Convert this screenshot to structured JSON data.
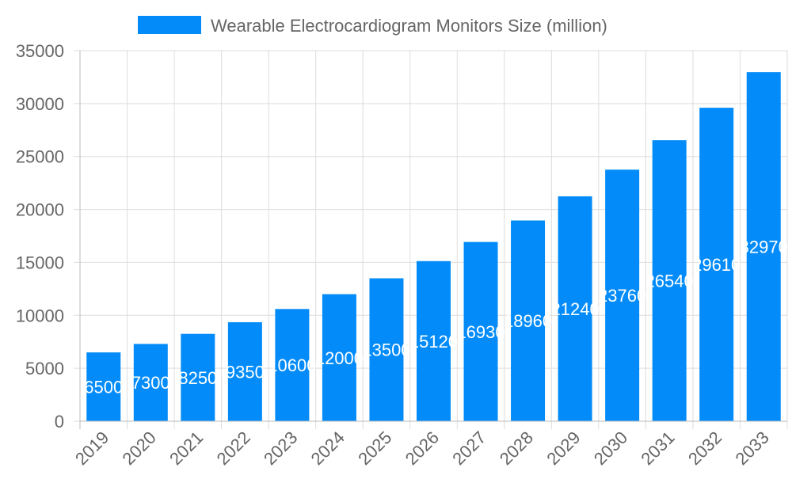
{
  "chart_data": {
    "type": "bar",
    "title": "",
    "xlabel": "",
    "ylabel": "",
    "legend": {
      "position": "top",
      "entries": [
        "Wearable Electrocardiogram Monitors Size (million)"
      ]
    },
    "categories": [
      "2019",
      "2020",
      "2021",
      "2022",
      "2023",
      "2024",
      "2025",
      "2026",
      "2027",
      "2028",
      "2029",
      "2030",
      "2031",
      "2032",
      "2033"
    ],
    "series": [
      {
        "name": "Wearable Electrocardiogram Monitors Size (million)",
        "values": [
          6500,
          7300,
          8250,
          9350,
          10600,
          12000,
          13500,
          15120,
          16930,
          18960,
          21240,
          23760,
          26540,
          29610,
          32970
        ],
        "color": "#038cf9"
      }
    ],
    "ylim": [
      0,
      35000
    ],
    "yticks": [
      "0",
      "5000",
      "10000",
      "15000",
      "20000",
      "25000",
      "30000",
      "35000"
    ],
    "grid": true,
    "data_labels": true
  }
}
